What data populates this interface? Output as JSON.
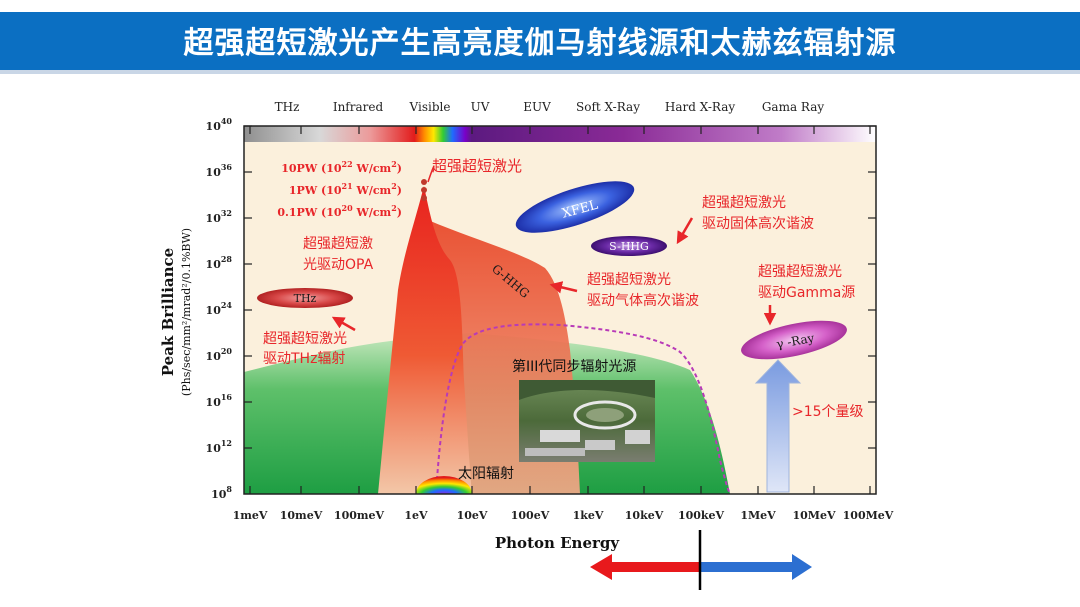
{
  "header": {
    "title": "超强超短激光产生高亮度伽马射线源和太赫兹辐射源"
  },
  "chart": {
    "bands": [
      "THz",
      "Infrared",
      "Visible",
      "UV",
      "EUV",
      "Soft X-Ray",
      "Hard X-Ray",
      "Gama Ray"
    ],
    "y_ticks": [
      {
        "base": "10",
        "exp": "40"
      },
      {
        "base": "10",
        "exp": "36"
      },
      {
        "base": "10",
        "exp": "32"
      },
      {
        "base": "10",
        "exp": "28"
      },
      {
        "base": "10",
        "exp": "24"
      },
      {
        "base": "10",
        "exp": "20"
      },
      {
        "base": "10",
        "exp": "16"
      },
      {
        "base": "10",
        "exp": "12"
      },
      {
        "base": "10",
        "exp": "8"
      }
    ],
    "x_ticks": [
      "1meV",
      "10meV",
      "100meV",
      "1eV",
      "10eV",
      "100eV",
      "1keV",
      "10keV",
      "100keV",
      "1MeV",
      "10MeV",
      "100MeV"
    ],
    "ylabel_main": "Peak Brilliance",
    "ylabel_unit": "(Phs/sec/mm²/mrad²/0.1%BW)",
    "xlabel": "Photon Energy"
  },
  "annotations": {
    "laser_power": [
      {
        "prefix": "10PW (10",
        "exp": "22",
        "unit": " W/cm",
        "unit_exp": "2",
        "suffix": ")"
      },
      {
        "prefix": "1PW (10",
        "exp": "21",
        "unit": " W/cm",
        "unit_exp": "2",
        "suffix": ")"
      },
      {
        "prefix": "0.1PW (10",
        "exp": "20",
        "unit": " W/cm",
        "unit_exp": "2",
        "suffix": ")"
      }
    ],
    "laser_label": "超强超短激光",
    "opa": [
      "超强超短激",
      "光驱动OPA"
    ],
    "thz_blob": "THz",
    "thz": [
      "超强超短激光",
      "驱动THz辐射"
    ],
    "xfel": "XFEL",
    "shhg": "S-HHG",
    "solid_hhg": [
      "超强超短激光",
      "驱动固体高次谐波"
    ],
    "ghhg": "G-HHG",
    "gas_hhg": [
      "超强超短激光",
      "驱动气体高次谐波"
    ],
    "gamma_source": [
      "超强超短激光",
      "驱动Gamma源"
    ],
    "gamma_blob": "γ -Ray",
    "synchrotron": "第III代同步辐射光源",
    "order": ">15个量级",
    "solar": "太阳辐射"
  },
  "colors": {
    "banner": "#0b6fc2",
    "annotation_red": "#e8262a",
    "laser_red": "#e63a2a"
  }
}
